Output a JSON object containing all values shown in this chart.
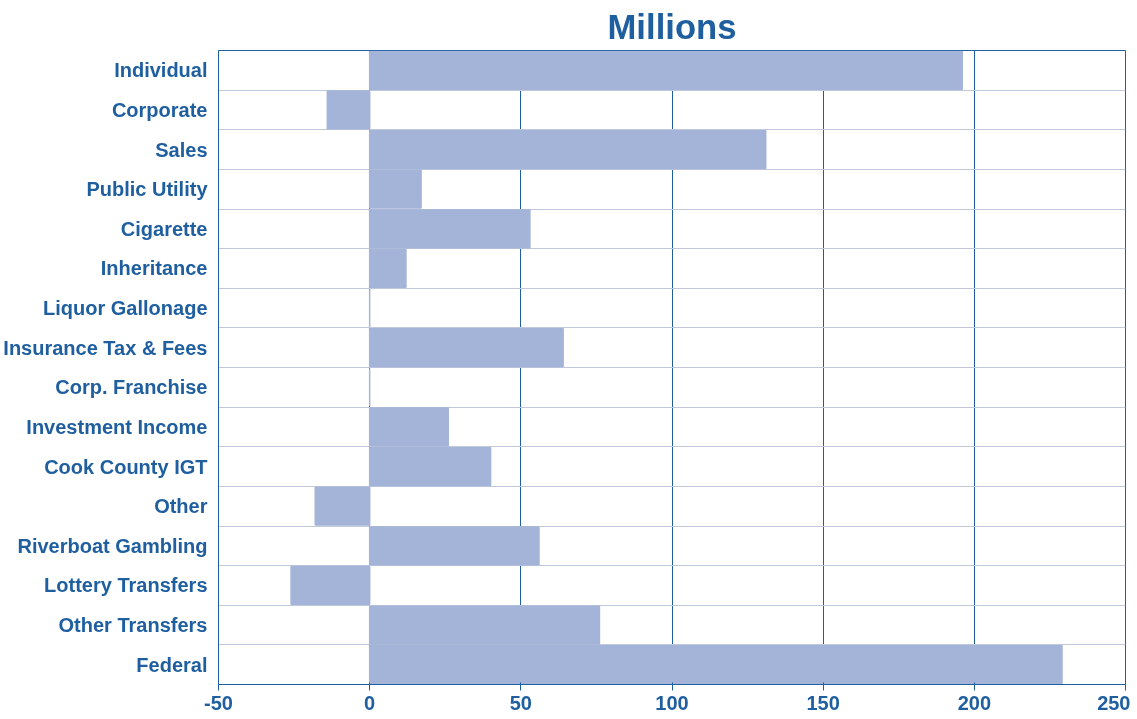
{
  "chart_data": {
    "type": "bar",
    "title": "Millions",
    "orientation": "horizontal",
    "categories": [
      "Individual",
      "Corporate",
      "Sales",
      "Public Utility",
      "Cigarette",
      "Inheritance",
      "Liquor Gallonage",
      "Insurance Tax & Fees",
      "Corp. Franchise",
      "Investment Income",
      "Cook County IGT",
      "Other",
      "Riverboat Gambling",
      "Lottery Transfers",
      "Other Transfers",
      "Federal"
    ],
    "values": [
      196,
      -14,
      131,
      17,
      53,
      12,
      0,
      64,
      0,
      26,
      40,
      -18,
      56,
      -26,
      76,
      229
    ],
    "color": "#a4b4d8",
    "xlim": [
      -50,
      250
    ],
    "xticks": [
      -50,
      0,
      50,
      100,
      150,
      200,
      250
    ],
    "grid": "x"
  }
}
